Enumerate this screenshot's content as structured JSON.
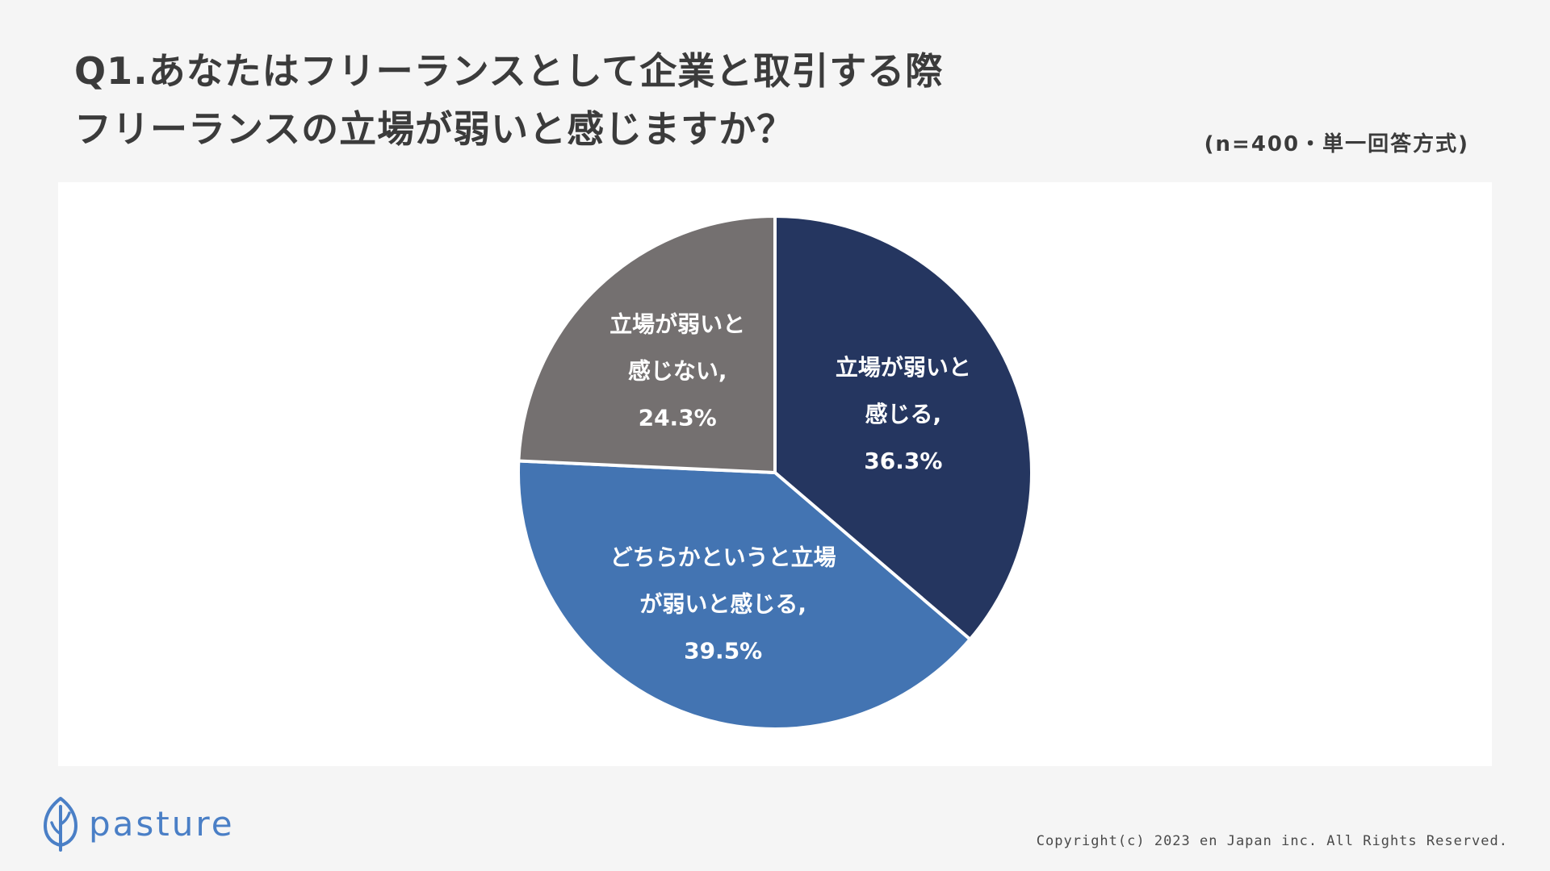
{
  "header": {
    "title_lines": [
      "Q1.あなたはフリーランスとして企業と取引する際",
      "フリーランスの立場が弱いと感じますか？"
    ],
    "sample_note": "(n=400・単一回答方式)"
  },
  "chart_data": {
    "type": "pie",
    "title": "",
    "slices": [
      {
        "label_lines": [
          "立場が弱いと",
          "感じる,",
          "36.3%"
        ],
        "category": "立場が弱いと感じる",
        "value": 36.3,
        "color": "#253660"
      },
      {
        "label_lines": [
          "どちらかというと立場",
          "が弱いと感じる,",
          "39.5%"
        ],
        "category": "どちらかというと立場が弱いと感じる",
        "value": 39.5,
        "color": "#4374b2"
      },
      {
        "label_lines": [
          "立場が弱いと",
          "感じない,",
          "24.3%"
        ],
        "category": "立場が弱いと感じない",
        "value": 24.3,
        "color": "#747070"
      }
    ],
    "start": "12 o'clock",
    "direction": "clockwise",
    "legend": "none",
    "grid": false
  },
  "footer": {
    "brand": "pasture",
    "copyright": "Copyright(c) 2023 en Japan inc. All Rights Reserved."
  },
  "icons": {
    "brand_logo": "leaf-icon",
    "brand_color": "#4a7fc6"
  }
}
